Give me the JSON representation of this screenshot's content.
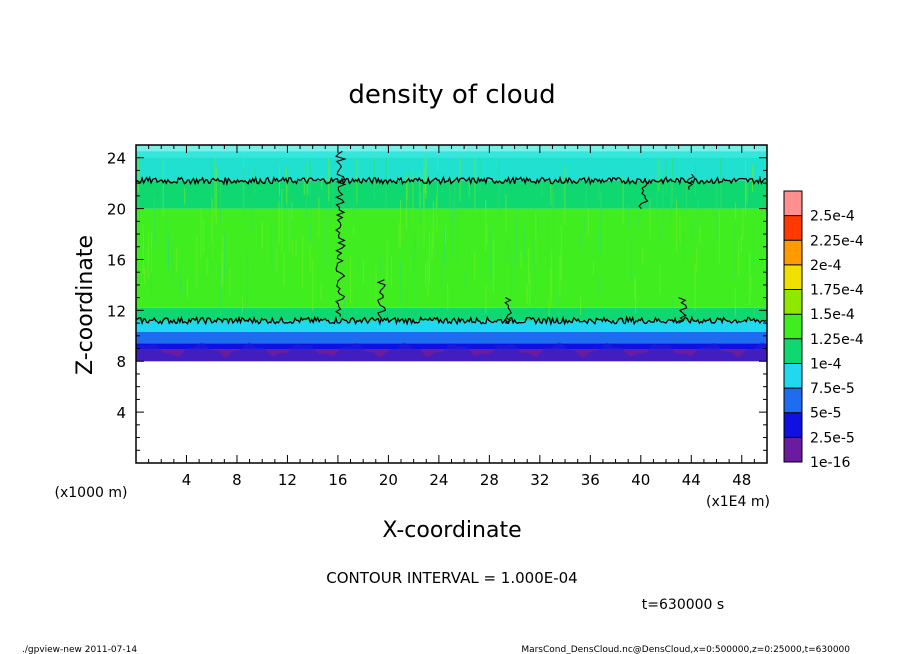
{
  "chart_data": {
    "type": "heatmap",
    "title": "density of cloud",
    "xlabel": "X-coordinate",
    "ylabel": "Z-coordinate",
    "x_unit": "(x1E4 m)",
    "y_unit": "(x1000 m)",
    "xlim": [
      0,
      50
    ],
    "ylim": [
      0,
      25
    ],
    "x_ticks": [
      "4",
      "8",
      "12",
      "16",
      "20",
      "24",
      "28",
      "32",
      "36",
      "40",
      "44",
      "48"
    ],
    "y_ticks": [
      "4",
      "8",
      "12",
      "16",
      "20",
      "24"
    ],
    "colorbar": {
      "labels": [
        "1e-16",
        "2.5e-5",
        "5e-5",
        "7.5e-5",
        "1e-4",
        "1.25e-4",
        "1.5e-4",
        "1.75e-4",
        "2e-4",
        "2.25e-4",
        "2.5e-4"
      ],
      "colors": [
        "#6a1ba0",
        "#1010e0",
        "#1e6cf0",
        "#20d8f0",
        "#10d870",
        "#40ee20",
        "#90e800",
        "#f0e000",
        "#ff9a00",
        "#ff3a00",
        "#ff9090"
      ]
    },
    "field": {
      "cloud_bottom_z": 8,
      "cloud_top_z": 24.5,
      "contour_levels_z": [
        11.2,
        22.2
      ],
      "bands": [
        {
          "z": [
            8.0,
            8.9
          ],
          "color": "#6a1ba0"
        },
        {
          "z": [
            8.9,
            9.4
          ],
          "color": "#1010e0"
        },
        {
          "z": [
            9.4,
            10.3
          ],
          "color": "#1e6cf0"
        },
        {
          "z": [
            10.3,
            11.2
          ],
          "color": "#20d8f0"
        },
        {
          "z": [
            11.2,
            12.2
          ],
          "color": "#10d870"
        },
        {
          "z": [
            12.2,
            20.0
          ],
          "color": "#40ee20"
        },
        {
          "z": [
            20.0,
            22.2
          ],
          "color": "#10d870"
        },
        {
          "z": [
            22.2,
            24.5
          ],
          "color": "#20e0d0"
        }
      ]
    },
    "contour_interval": "CONTOUR INTERVAL = 1.000E-04",
    "time_label": "t=630000 s",
    "legend": "right"
  },
  "footer": {
    "left": "./gpview-new  2011-07-14",
    "right": "MarsCond_DensCloud.nc@DensCloud,x=0:500000,z=0:25000,t=630000"
  }
}
